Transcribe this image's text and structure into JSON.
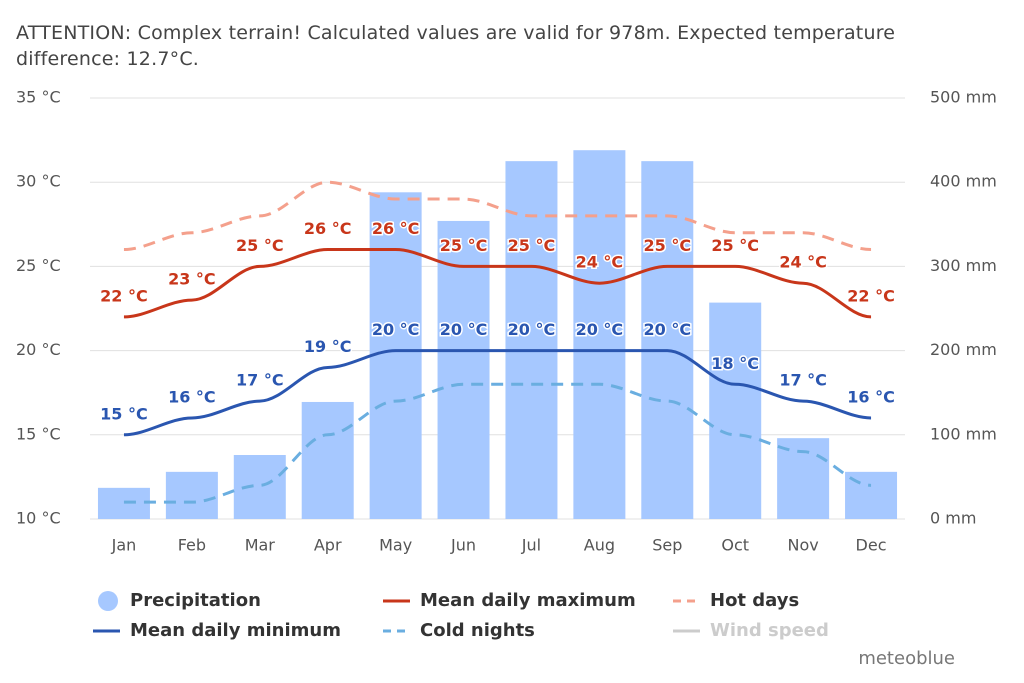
{
  "chart_data": {
    "type": "combo",
    "title": "ATTENTION: Complex terrain! Calculated values are valid for 978m. Expected temperature difference: 12.7°C.",
    "categories": [
      "Jan",
      "Feb",
      "Mar",
      "Apr",
      "May",
      "Jun",
      "Jul",
      "Aug",
      "Sep",
      "Oct",
      "Nov",
      "Dec"
    ],
    "ylim": [
      10,
      35
    ],
    "yticks": [
      {
        "value": 10,
        "label": "10 °C"
      },
      {
        "value": 15,
        "label": "15 °C"
      },
      {
        "value": 20,
        "label": "20 °C"
      },
      {
        "value": 25,
        "label": "25 °C"
      },
      {
        "value": 30,
        "label": "30 °C"
      },
      {
        "value": 35,
        "label": "35 °C"
      }
    ],
    "y2lim": [
      0,
      500
    ],
    "y2ticks": [
      {
        "value": 0,
        "label": "0 mm"
      },
      {
        "value": 100,
        "label": "100 mm"
      },
      {
        "value": 200,
        "label": "200 mm"
      },
      {
        "value": 300,
        "label": "300 mm"
      },
      {
        "value": 400,
        "label": "400 mm"
      },
      {
        "value": 500,
        "label": "500 mm"
      }
    ],
    "grid": true,
    "series": [
      {
        "name": "Precipitation",
        "type": "bar",
        "axis": "y2",
        "color": "#a6c8ff",
        "values": [
          37,
          56,
          76,
          139,
          388,
          354,
          425,
          438,
          425,
          257,
          96,
          56
        ]
      },
      {
        "name": "Mean daily maximum",
        "type": "line",
        "color": "#c8361a",
        "values": [
          22,
          23,
          25,
          26,
          26,
          25,
          25,
          24,
          25,
          25,
          24,
          22
        ],
        "value_labels": [
          "22 °C",
          "23 °C",
          "25 °C",
          "26 °C",
          "26 °C",
          "25 °C",
          "25 °C",
          "24 °C",
          "25 °C",
          "25 °C",
          "24 °C",
          "22 °C"
        ]
      },
      {
        "name": "Hot days",
        "type": "dashed",
        "color": "#f4a08c",
        "values": [
          26,
          27,
          28,
          30,
          29,
          29,
          28,
          28,
          28,
          27,
          27,
          26
        ]
      },
      {
        "name": "Mean daily minimum",
        "type": "line",
        "color": "#2a56b0",
        "values": [
          15,
          16,
          17,
          19,
          20,
          20,
          20,
          20,
          20,
          18,
          17,
          16
        ],
        "value_labels": [
          "15 °C",
          "16 °C",
          "17 °C",
          "19 °C",
          "20 °C",
          "20 °C",
          "20 °C",
          "20 °C",
          "20 °C",
          "18 °C",
          "17 °C",
          "16 °C"
        ]
      },
      {
        "name": "Cold nights",
        "type": "dashed",
        "color": "#6aaee0",
        "values": [
          11,
          11,
          12,
          15,
          17,
          18,
          18,
          18,
          17,
          15,
          14,
          12
        ]
      },
      {
        "name": "Wind speed",
        "type": "hidden",
        "color": "#cccccc"
      }
    ],
    "credit": "meteoblue"
  }
}
